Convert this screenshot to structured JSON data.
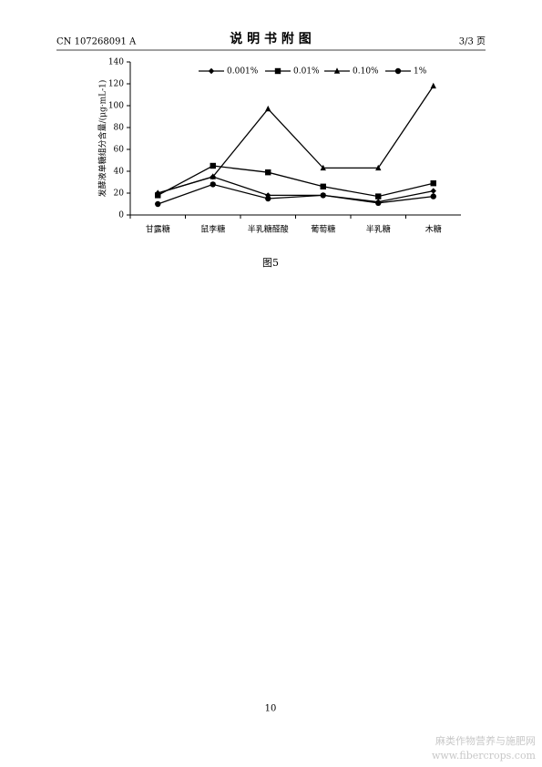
{
  "header": {
    "left": "CN 107268091 A",
    "title": "说 明 书 附 图",
    "right": "3/3 页"
  },
  "chart_data": {
    "type": "line",
    "y_label": "发酵液单糖组分含量/(μg·mL-1)",
    "categories": [
      "甘露糖",
      "鼠李糖",
      "半乳糖醛酸",
      "葡萄糖",
      "半乳糖",
      "木糖"
    ],
    "series": [
      {
        "name": "0.001%",
        "color": "#000000",
        "marker": "diamond",
        "values": [
          20,
          35,
          18,
          18,
          12,
          22
        ]
      },
      {
        "name": "0.01%",
        "color": "#000000",
        "marker": "square",
        "values": [
          18,
          45,
          39,
          26,
          17,
          29
        ]
      },
      {
        "name": "0.10%",
        "color": "#000000",
        "marker": "triangle",
        "values": [
          20,
          35,
          97,
          43,
          43,
          118
        ]
      },
      {
        "name": "1%",
        "color": "#000000",
        "marker": "circle",
        "values": [
          10,
          28,
          15,
          18,
          11,
          17
        ]
      }
    ],
    "ylim": [
      0,
      140
    ],
    "yticks": [
      0,
      20,
      40,
      60,
      80,
      100,
      120,
      140
    ],
    "grid": false,
    "legend": "top"
  },
  "caption": "图5",
  "footer": "10",
  "watermark": {
    "name": "麻类作物营养与施肥网",
    "url": "www.fibercrops.com"
  }
}
